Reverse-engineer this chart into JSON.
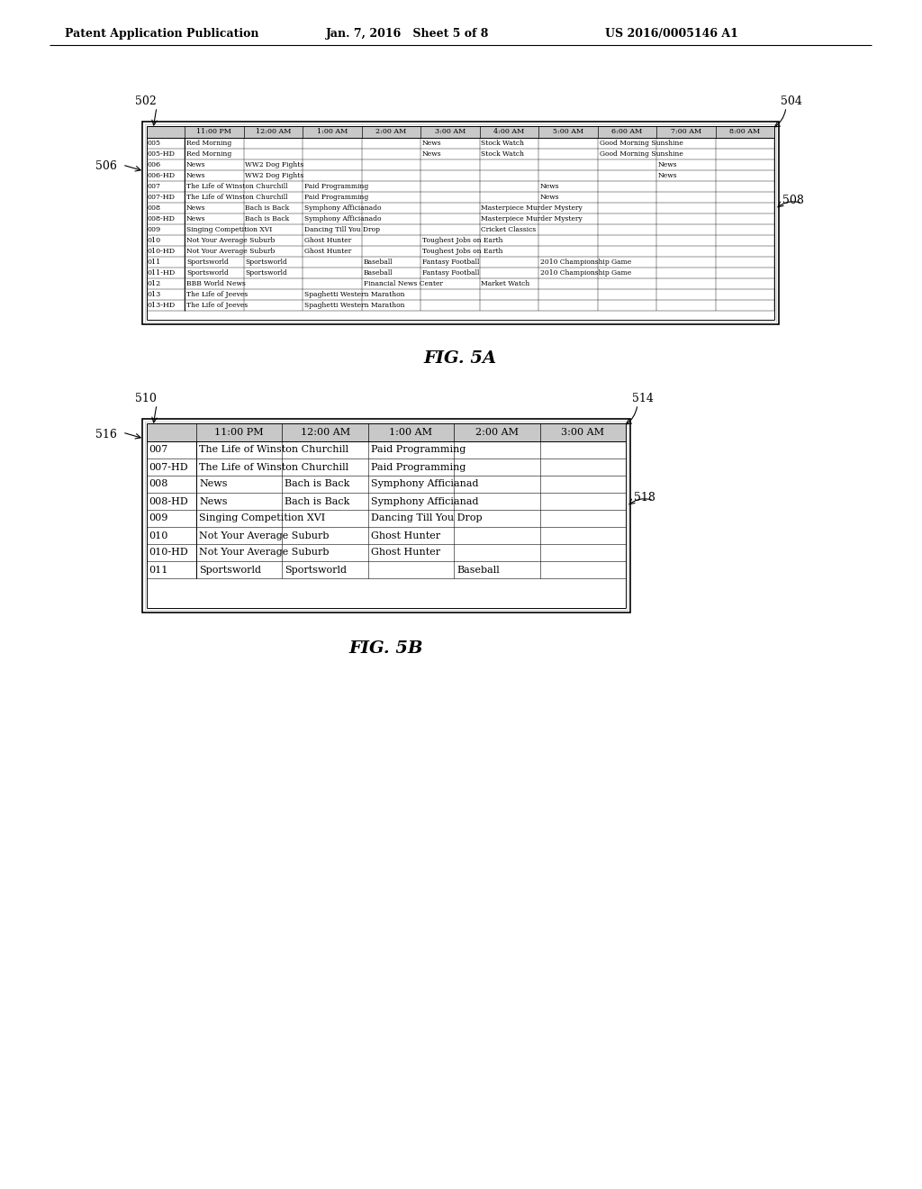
{
  "header_text_left": "Patent Application Publication",
  "header_text_middle": "Jan. 7, 2016   Sheet 5 of 8",
  "header_text_right": "US 2016/0005146 A1",
  "fig5a_label": "FIG. 5A",
  "fig5b_label": "FIG. 5B",
  "label_502": "502",
  "label_504": "504",
  "label_506": "506",
  "label_508": "508",
  "label_510": "510",
  "label_514": "514",
  "label_516": "516",
  "label_518": "518",
  "fig5a_time_headers": [
    "",
    "11:00 PM",
    "12:00 AM",
    "1:00 AM",
    "2:00 AM",
    "3:00 AM",
    "4:00 AM",
    "5:00 AM",
    "6:00 AM",
    "7:00 AM",
    "8:00 AM"
  ],
  "fig5a_rows": [
    [
      "005",
      "Red Morning",
      "",
      "",
      "",
      "News",
      "Stock Watch",
      "",
      "Good Morning Sunshine",
      "",
      ""
    ],
    [
      "005-HD",
      "Red Morning",
      "",
      "",
      "",
      "News",
      "Stock Watch",
      "",
      "Good Morning Sunshine",
      "",
      ""
    ],
    [
      "006",
      "News",
      "WW2 Dog Fights",
      "",
      "",
      "",
      "",
      "",
      "",
      "News",
      ""
    ],
    [
      "006-HD",
      "News",
      "WW2 Dog Fights",
      "",
      "",
      "",
      "",
      "",
      "",
      "News",
      ""
    ],
    [
      "007",
      "The Life of Winston Churchill",
      "",
      "Paid Programming",
      "",
      "",
      "",
      "News",
      "",
      "",
      ""
    ],
    [
      "007-HD",
      "The Life of Winston Churchill",
      "",
      "Paid Programming",
      "",
      "",
      "",
      "News",
      "",
      "",
      ""
    ],
    [
      "008",
      "News",
      "Bach is Back",
      "Symphony Afficianado",
      "",
      "",
      "Masterpiece Murder Mystery",
      "",
      "",
      "",
      ""
    ],
    [
      "008-HD",
      "News",
      "Bach is Back",
      "Symphony Afficianado",
      "",
      "",
      "Masterpiece Murder Mystery",
      "",
      "",
      "",
      ""
    ],
    [
      "009",
      "Singing Competition XVI",
      "",
      "Dancing Till You Drop",
      "",
      "",
      "Cricket Classics",
      "",
      "",
      "",
      ""
    ],
    [
      "010",
      "Not Your Average Suburb",
      "",
      "Ghost Hunter",
      "",
      "Toughest Jobs on Earth",
      "",
      "",
      "",
      "",
      ""
    ],
    [
      "010-HD",
      "Not Your Average Suburb",
      "",
      "Ghost Hunter",
      "",
      "Toughest Jobs on Earth",
      "",
      "",
      "",
      "",
      ""
    ],
    [
      "011",
      "Sportsworld",
      "Sportsworld",
      "",
      "Baseball",
      "Fantasy Football",
      "",
      "2010 Championship Game",
      "",
      "",
      ""
    ],
    [
      "011-HD",
      "Sportsworld",
      "Sportsworld",
      "",
      "Baseball",
      "Fantasy Football",
      "",
      "2010 Championship Game",
      "",
      "",
      ""
    ],
    [
      "012",
      "BBB World News",
      "",
      "",
      "Financial News Center",
      "",
      "Market Watch",
      "",
      "",
      "",
      ""
    ],
    [
      "013",
      "The Life of Jeeves",
      "",
      "Spaghetti Western Marathon",
      "",
      "",
      "",
      "",
      "",
      "",
      ""
    ],
    [
      "013-HD",
      "The Life of Jeeves",
      "",
      "Spaghetti Western Marathon",
      "",
      "",
      "",
      "",
      "",
      "",
      ""
    ]
  ],
  "fig5b_time_headers": [
    "",
    "11:00 PM",
    "12:00 AM",
    "1:00 AM",
    "2:00 AM",
    "3:00 AM"
  ],
  "fig5b_rows": [
    [
      "007",
      "The Life of Winston Churchill",
      "",
      "Paid Programming",
      "",
      ""
    ],
    [
      "007-HD",
      "The Life of Winston Churchill",
      "",
      "Paid Programming",
      "",
      ""
    ],
    [
      "008",
      "News",
      "Bach is Back",
      "Symphony Afficianad",
      "",
      ""
    ],
    [
      "008-HD",
      "News",
      "Bach is Back",
      "Symphony Afficianad",
      "",
      ""
    ],
    [
      "009",
      "Singing Competition XVI",
      "",
      "Dancing Till You Drop",
      "",
      ""
    ],
    [
      "010",
      "Not Your Average Suburb",
      "",
      "Ghost Hunter",
      "",
      ""
    ],
    [
      "010-HD",
      "Not Your Average Suburb",
      "",
      "Ghost Hunter",
      "",
      ""
    ],
    [
      "011",
      "Sportsworld",
      "Sportsworld",
      "",
      "Baseball",
      ""
    ]
  ],
  "bg_color": "#ffffff",
  "header_row_bg": "#c8c8c8"
}
